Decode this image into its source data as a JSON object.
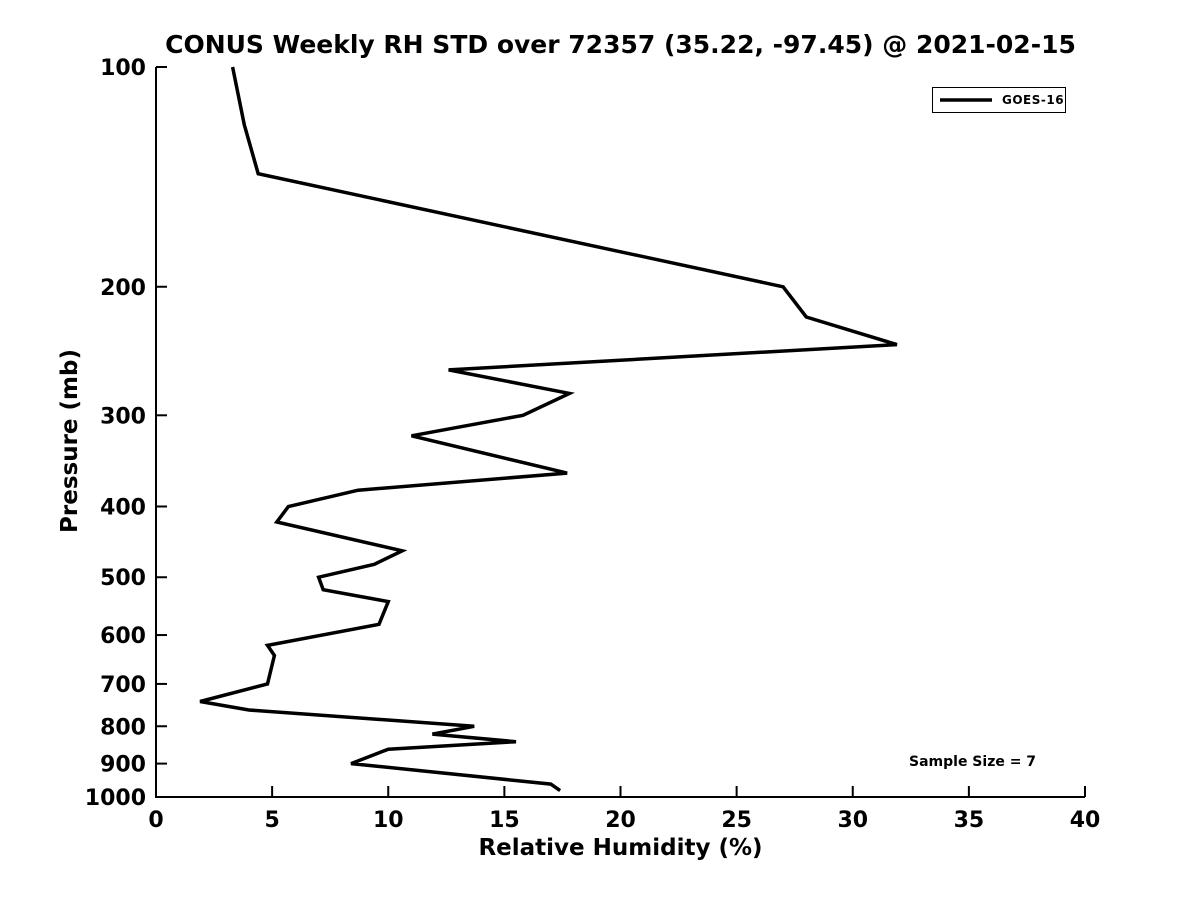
{
  "title": "CONUS Weekly RH STD over 72357 (35.22, -97.45) @ 2021-02-15",
  "x_axis": {
    "label": "Relative Humidity (%)",
    "ticks": [
      0,
      5,
      10,
      15,
      20,
      25,
      30,
      35,
      40
    ],
    "min": 0,
    "max": 40
  },
  "y_axis": {
    "label": "Pressure (mb)",
    "ticks": [
      100,
      200,
      300,
      400,
      500,
      600,
      700,
      800,
      900,
      1000
    ],
    "min": 100,
    "max": 1000,
    "scale": "log",
    "direction": "inverted"
  },
  "legend": {
    "label": "GOES-16",
    "line_color": "#000000",
    "position": "upper-right"
  },
  "annotations": {
    "sample_size": "Sample Size = 7"
  },
  "chart_data": {
    "type": "line",
    "title": "CONUS Weekly RH STD over 72357 (35.22, -97.45) @ 2021-02-15",
    "xlabel": "Relative Humidity (%)",
    "ylabel": "Pressure (mb)",
    "xlim": [
      0,
      40
    ],
    "ylim": [
      100,
      1000
    ],
    "yscale": "log",
    "y_inverted": true,
    "grid": false,
    "legend_position": "upper right",
    "series": [
      {
        "name": "GOES-16",
        "color": "#000000",
        "line_width": 3.5,
        "x_rh_percent": [
          3.3,
          3.8,
          4.4,
          27.0,
          28.0,
          31.9,
          12.6,
          17.8,
          15.8,
          11.0,
          17.7,
          8.7,
          5.7,
          5.2,
          10.6,
          9.4,
          7.0,
          7.2,
          10.0,
          9.6,
          4.8,
          5.1,
          4.8,
          1.9,
          4.0,
          13.7,
          11.9,
          15.5,
          10.0,
          8.4,
          17.0,
          17.4
        ],
        "y_pressure_mb": [
          100,
          120,
          140,
          200,
          220,
          240,
          260,
          280,
          300,
          320,
          360,
          380,
          400,
          420,
          460,
          480,
          500,
          520,
          540,
          580,
          620,
          640,
          700,
          740,
          760,
          800,
          820,
          840,
          860,
          900,
          960,
          980
        ]
      }
    ]
  }
}
